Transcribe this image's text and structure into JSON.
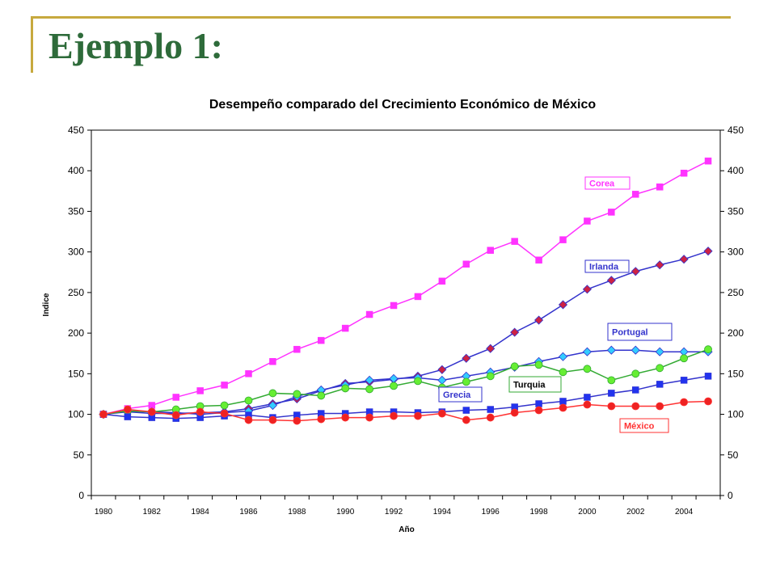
{
  "slide": {
    "title": "Ejemplo 1:"
  },
  "chart_data": {
    "type": "line",
    "title": "Desempeño comparado del Crecimiento Económico de México",
    "xlabel": "Año",
    "ylabel": "Indice",
    "ylim": [
      0,
      450
    ],
    "yticks": [
      0,
      50,
      100,
      150,
      200,
      250,
      300,
      350,
      400,
      450
    ],
    "x": [
      1980,
      1981,
      1982,
      1983,
      1984,
      1985,
      1986,
      1987,
      1988,
      1989,
      1990,
      1991,
      1992,
      1993,
      1994,
      1995,
      1996,
      1997,
      1998,
      1999,
      2000,
      2001,
      2002,
      2003,
      2004,
      2005
    ],
    "xtick_labels": [
      1980,
      1982,
      1984,
      1986,
      1988,
      1990,
      1992,
      1994,
      1996,
      1998,
      2000,
      2002,
      2004
    ],
    "grid": false,
    "right_axis": true,
    "series": [
      {
        "name": "Corea",
        "color": "#ff33ff",
        "marker": "square",
        "values": [
          100,
          107,
          111,
          121,
          129,
          136,
          150,
          165,
          180,
          191,
          206,
          223,
          234,
          245,
          264,
          285,
          302,
          313,
          290,
          315,
          338,
          349,
          371,
          380,
          397,
          412
        ]
      },
      {
        "name": "Irlanda",
        "color": "#3333cc",
        "marker": "diamond",
        "marker_fill": "#cc2244",
        "values": [
          100,
          103,
          101,
          101,
          102,
          103,
          107,
          113,
          119,
          129,
          138,
          140,
          143,
          147,
          155,
          169,
          181,
          201,
          216,
          235,
          254,
          265,
          276,
          284,
          291,
          301
        ]
      },
      {
        "name": "Portugal",
        "color": "#3333cc",
        "marker": "diamond",
        "marker_fill": "#33ccff",
        "values": [
          100,
          104,
          103,
          102,
          100,
          102,
          104,
          111,
          122,
          130,
          136,
          142,
          144,
          145,
          142,
          147,
          152,
          158,
          165,
          171,
          177,
          179,
          179,
          177,
          177,
          177
        ]
      },
      {
        "name": "Turquia",
        "color": "#33aa33",
        "marker": "circle",
        "marker_fill": "#66ee33",
        "values": [
          100,
          104,
          103,
          106,
          110,
          111,
          117,
          126,
          125,
          123,
          132,
          131,
          135,
          141,
          133,
          140,
          147,
          159,
          161,
          152,
          156,
          142,
          150,
          157,
          169,
          180
        ]
      },
      {
        "name": "Grecia",
        "color": "#3333cc",
        "marker": "square",
        "marker_fill": "#2233ee",
        "values": [
          100,
          97,
          96,
          95,
          96,
          98,
          99,
          96,
          99,
          101,
          101,
          103,
          103,
          102,
          103,
          105,
          106,
          109,
          113,
          116,
          121,
          126,
          130,
          137,
          142,
          147
        ]
      },
      {
        "name": "México",
        "color": "#ff3333",
        "marker": "circle",
        "marker_fill": "#ee2222",
        "values": [
          100,
          106,
          103,
          99,
          103,
          101,
          93,
          93,
          92,
          94,
          96,
          96,
          98,
          98,
          101,
          93,
          96,
          102,
          105,
          108,
          112,
          110,
          110,
          110,
          115,
          116
        ]
      }
    ]
  }
}
